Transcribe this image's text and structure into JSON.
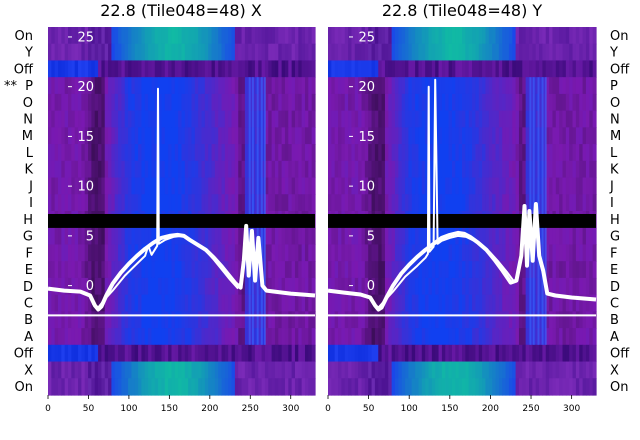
{
  "chart_data": [
    {
      "type": "heatmap",
      "title": "22.8 (Tile048=48) X",
      "xlim": [
        0,
        330
      ],
      "ylim": [
        -11,
        26
      ],
      "x_ticks": [
        "0",
        "50",
        "100",
        "150",
        "200",
        "250",
        "300"
      ],
      "y_ticks": [
        "0",
        "5",
        "10",
        "15",
        "20",
        "25"
      ],
      "row_labels_left": [
        "On",
        "Y",
        "Off",
        "P",
        "O",
        "N",
        "M",
        "L",
        "K",
        "J",
        "I",
        "H",
        "G",
        "F",
        "E",
        "D",
        "C",
        "B",
        "A",
        "Off",
        "X",
        "On"
      ],
      "row_marker": "**",
      "marked_row": "P",
      "horizontal_line_y": -3,
      "gap_band": [
        5.8,
        7.2
      ],
      "series": [
        {
          "x": [
            0,
            20,
            40,
            52,
            58,
            62,
            66,
            72,
            80,
            90,
            100,
            110,
            120,
            130,
            140,
            150,
            160,
            168,
            175,
            185,
            195,
            205,
            215,
            225,
            232,
            238,
            242,
            245,
            248,
            252,
            256,
            260,
            265,
            270,
            280,
            300,
            330
          ],
          "y": [
            -0.3,
            -0.5,
            -0.6,
            -1.0,
            -2.0,
            -2.4,
            -2.1,
            -1.0,
            0.2,
            1.3,
            2.2,
            3.0,
            3.7,
            4.3,
            4.8,
            5.0,
            5.1,
            5.0,
            4.6,
            4.1,
            3.6,
            2.8,
            1.9,
            0.9,
            0.2,
            -0.2,
            2.5,
            6.0,
            1.0,
            5.5,
            0.5,
            4.8,
            0.0,
            -0.5,
            -0.6,
            -0.8,
            -1.0
          ]
        },
        {
          "x": [
            55,
            62,
            70,
            80,
            95,
            110,
            120,
            124,
            128,
            135,
            136,
            137,
            145,
            155,
            165,
            175,
            185,
            195,
            205,
            215,
            225,
            235
          ],
          "y": [
            -1.8,
            -2.2,
            -1.4,
            -0.5,
            1.0,
            2.2,
            3.0,
            4.0,
            3.1,
            4.0,
            19.8,
            4.2,
            4.6,
            4.9,
            5.0,
            4.7,
            4.1,
            3.5,
            2.6,
            1.6,
            0.6,
            -0.3
          ]
        }
      ]
    },
    {
      "type": "heatmap",
      "title": "22.8 (Tile048=48) Y",
      "xlim": [
        0,
        330
      ],
      "ylim": [
        -11,
        26
      ],
      "x_ticks": [
        "0",
        "50",
        "100",
        "150",
        "200",
        "250",
        "300"
      ],
      "y_ticks": [
        "0",
        "5",
        "10",
        "15",
        "20",
        "25"
      ],
      "row_labels_right": [
        "On",
        "Y",
        "Off",
        "P",
        "O",
        "N",
        "M",
        "L",
        "K",
        "J",
        "I",
        "H",
        "G",
        "F",
        "E",
        "D",
        "C",
        "B",
        "A",
        "Off",
        "X",
        "On"
      ],
      "horizontal_line_y": -3,
      "gap_band": [
        5.8,
        7.2
      ],
      "series": [
        {
          "x": [
            0,
            20,
            40,
            52,
            58,
            62,
            66,
            72,
            80,
            90,
            100,
            110,
            120,
            130,
            140,
            150,
            160,
            168,
            175,
            185,
            195,
            205,
            215,
            225,
            232,
            238,
            242,
            245,
            248,
            252,
            256,
            260,
            265,
            270,
            280,
            300,
            330
          ],
          "y": [
            -0.5,
            -0.7,
            -0.9,
            -1.2,
            -2.0,
            -2.4,
            -2.2,
            -1.2,
            0.0,
            1.2,
            2.1,
            2.9,
            3.6,
            4.2,
            4.8,
            5.1,
            5.3,
            5.2,
            4.9,
            4.3,
            3.6,
            2.6,
            1.5,
            0.3,
            0.5,
            3.0,
            8.0,
            2.0,
            7.5,
            2.5,
            8.2,
            3.0,
            1.5,
            -0.8,
            -1.0,
            -1.2,
            -1.4
          ]
        },
        {
          "x": [
            55,
            62,
            70,
            80,
            95,
            110,
            120,
            123,
            124,
            125,
            130,
            132,
            135,
            140,
            150,
            160,
            170,
            180,
            190,
            200,
            210,
            220,
            230
          ],
          "y": [
            -1.8,
            -2.2,
            -1.5,
            -0.6,
            0.9,
            2.0,
            2.8,
            3.2,
            20.0,
            3.4,
            3.9,
            20.7,
            4.2,
            4.5,
            4.8,
            5.0,
            4.9,
            4.5,
            4.0,
            3.3,
            2.4,
            1.4,
            0.3
          ]
        }
      ]
    }
  ]
}
